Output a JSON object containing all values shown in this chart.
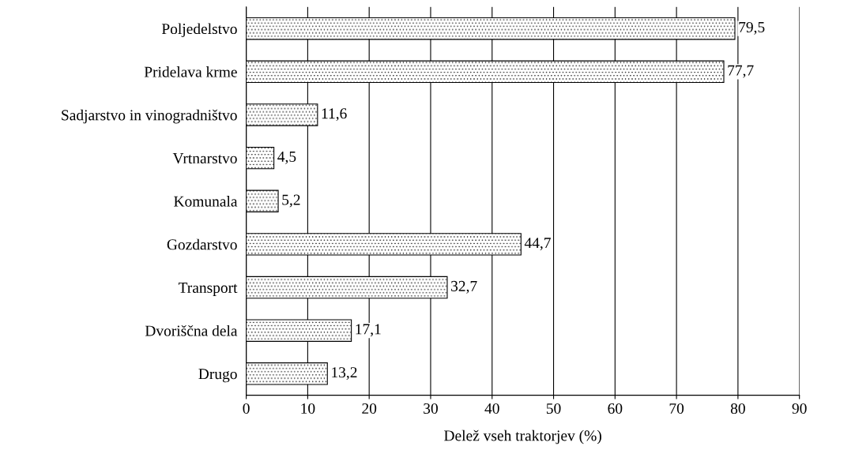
{
  "chart_data": {
    "type": "bar",
    "orientation": "horizontal",
    "xlabel": "Delež vseh traktorjev (%)",
    "categories": [
      "Poljedelstvo",
      "Pridelava krme",
      "Sadjarstvo in vinogradništvo",
      "Vrtnarstvo",
      "Komunala",
      "Gozdarstvo",
      "Transport",
      "Dvoriščna dela",
      "Drugo"
    ],
    "values": [
      79.5,
      77.7,
      11.6,
      4.5,
      5.2,
      44.7,
      32.7,
      17.1,
      13.2
    ],
    "value_labels": [
      "79,5",
      "77,7",
      "11,6",
      "4,5",
      "5,2",
      "44,7",
      "32,7",
      "17,1",
      "13,2"
    ],
    "color": "#000000",
    "xlim": [
      0,
      90
    ],
    "xticks": [
      0,
      10,
      20,
      30,
      40,
      50,
      60,
      70,
      80,
      90
    ],
    "grid": "x"
  }
}
